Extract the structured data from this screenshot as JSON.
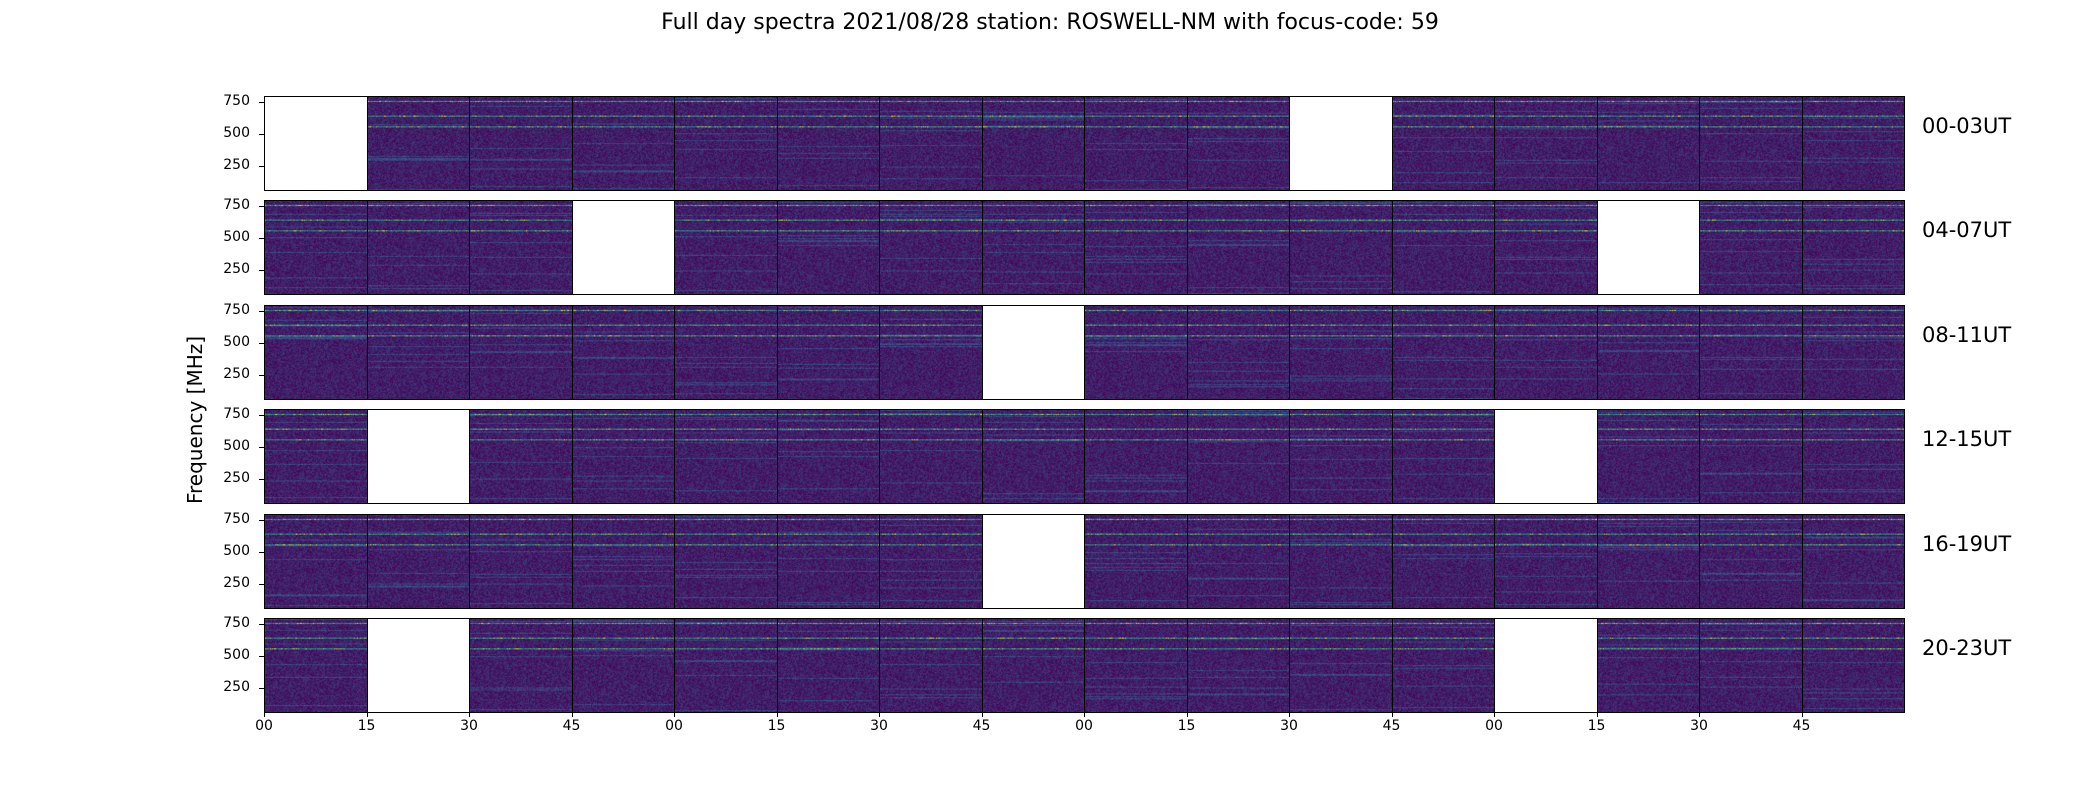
{
  "chart_data": {
    "type": "heatmap",
    "title": "Full day spectra 2021/08/28 station: ROSWELL-NM with focus-code: 59",
    "ylabel": "Frequency [MHz]",
    "xlabel": "",
    "y_ticks": [
      "750",
      "500",
      "250"
    ],
    "y_tick_values": [
      750,
      500,
      250
    ],
    "ylim": [
      50,
      800
    ],
    "x_ticks": [
      "00",
      "15",
      "30",
      "45",
      "00",
      "15",
      "30",
      "45",
      "00",
      "15",
      "30",
      "45",
      "00",
      "15",
      "30",
      "45"
    ],
    "colormap": "viridis",
    "panels_per_row": 16,
    "panel_minutes": 15,
    "rows": [
      {
        "label": "00-03UT",
        "missing": [
          0,
          10
        ]
      },
      {
        "label": "04-07UT",
        "missing": [
          3,
          13
        ]
      },
      {
        "label": "08-11UT",
        "missing": [
          7
        ]
      },
      {
        "label": "12-15UT",
        "missing": [
          1,
          12
        ]
      },
      {
        "label": "16-19UT",
        "missing": [
          7
        ]
      },
      {
        "label": "20-23UT",
        "missing": [
          1,
          12
        ]
      }
    ],
    "bright_bands_mhz": [
      650,
      560,
      770
    ],
    "grid": false
  },
  "colors": {
    "background": "#440154",
    "mid": "#3b528b",
    "band": "#21918c",
    "hot": "#fde725"
  }
}
